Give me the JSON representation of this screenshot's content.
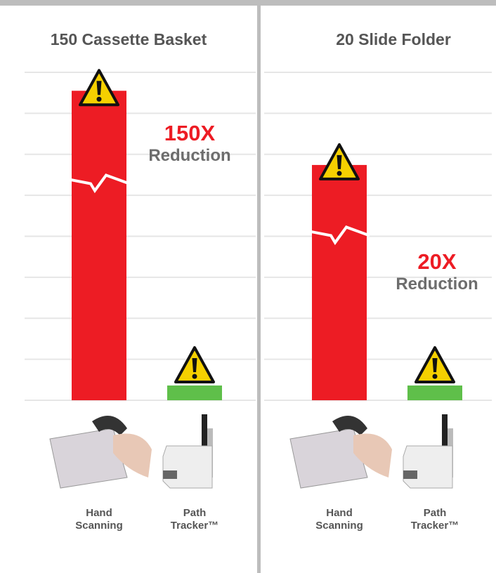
{
  "chart_data": [
    {
      "type": "bar",
      "title": "150 Cassette Basket",
      "categories": [
        "Hand Scanning",
        "Path Tracker™"
      ],
      "values": [
        7.55,
        0.36
      ],
      "colors": [
        "#ed1c24",
        "#5fbf4a"
      ],
      "ylim": [
        0,
        8
      ],
      "yticks": [
        0,
        1,
        2,
        3,
        4,
        5,
        6,
        7,
        8
      ],
      "grid": true,
      "annotations": [
        "150X",
        "Reduction"
      ]
    },
    {
      "type": "bar",
      "title": "20 Slide Folder",
      "categories": [
        "Hand Scanning",
        "Path Tracker™"
      ],
      "values": [
        5.74,
        0.36
      ],
      "colors": [
        "#ed1c24",
        "#5fbf4a"
      ],
      "ylim": [
        0,
        8
      ],
      "yticks": [
        0,
        1,
        2,
        3,
        4,
        5,
        6,
        7,
        8
      ],
      "grid": true,
      "annotations": [
        "20X",
        "Reduction"
      ]
    }
  ]
}
